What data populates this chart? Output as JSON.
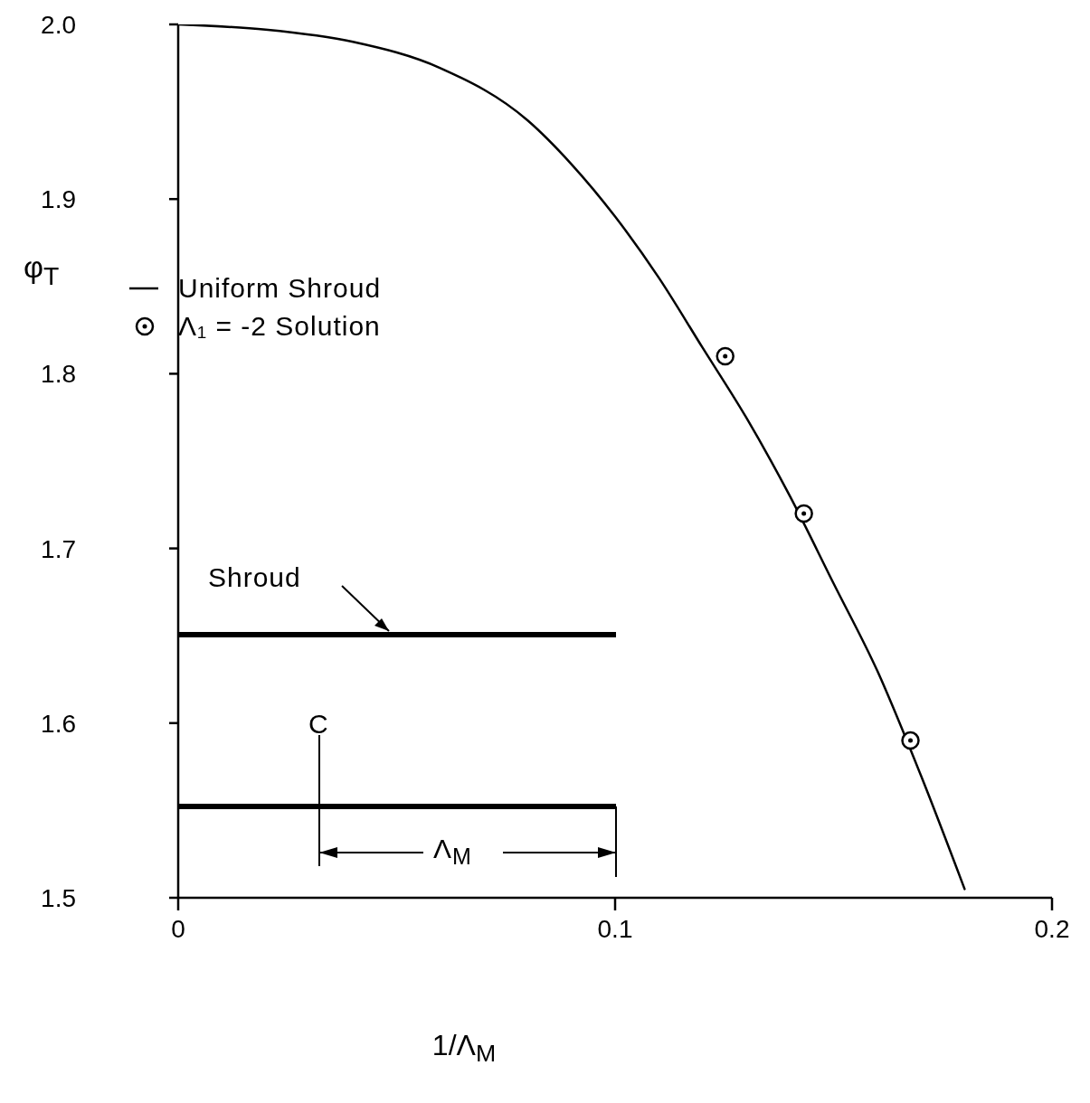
{
  "chart_data": {
    "type": "line",
    "xlabel": "1/Λ$_{M}$",
    "ylabel": "φ$_{T}$",
    "xlim": [
      0,
      0.2
    ],
    "xticks": [
      0,
      0.1,
      0.2
    ],
    "ylim": [
      1.5,
      2.0
    ],
    "yticks": [
      {
        "value": 1.5,
        "label": "1.5"
      },
      1.6,
      1.7,
      1.8,
      1.9,
      {
        "value": 2.0,
        "label": "2.0"
      }
    ],
    "legend": "top left",
    "line_style": "solid",
    "series": [
      {
        "name": "Uniform Shroud",
        "type": "line",
        "color": "#000000",
        "marker": "none",
        "x": [
          0,
          0.02,
          0.04,
          0.06,
          0.08,
          0.09,
          0.1,
          0.11,
          0.12,
          0.13,
          0.14,
          0.15,
          0.16,
          0.17,
          0.18
        ],
        "values": [
          2.0,
          1.997,
          1.99,
          1.975,
          1.945,
          1.92,
          1.89,
          1.855,
          1.815,
          1.775,
          1.73,
          1.68,
          1.63,
          1.57,
          1.505
        ]
      },
      {
        "name": "Λ₁ = -2 Solution",
        "type": "scatter",
        "color": "#000000",
        "marker": "circle",
        "x": [
          0.1252,
          0.1432,
          0.1676
        ],
        "values": [
          1.81,
          1.72,
          1.59
        ]
      }
    ],
    "annotations": [
      "Shroud",
      "C",
      "Λ$_{M}$"
    ]
  }
}
